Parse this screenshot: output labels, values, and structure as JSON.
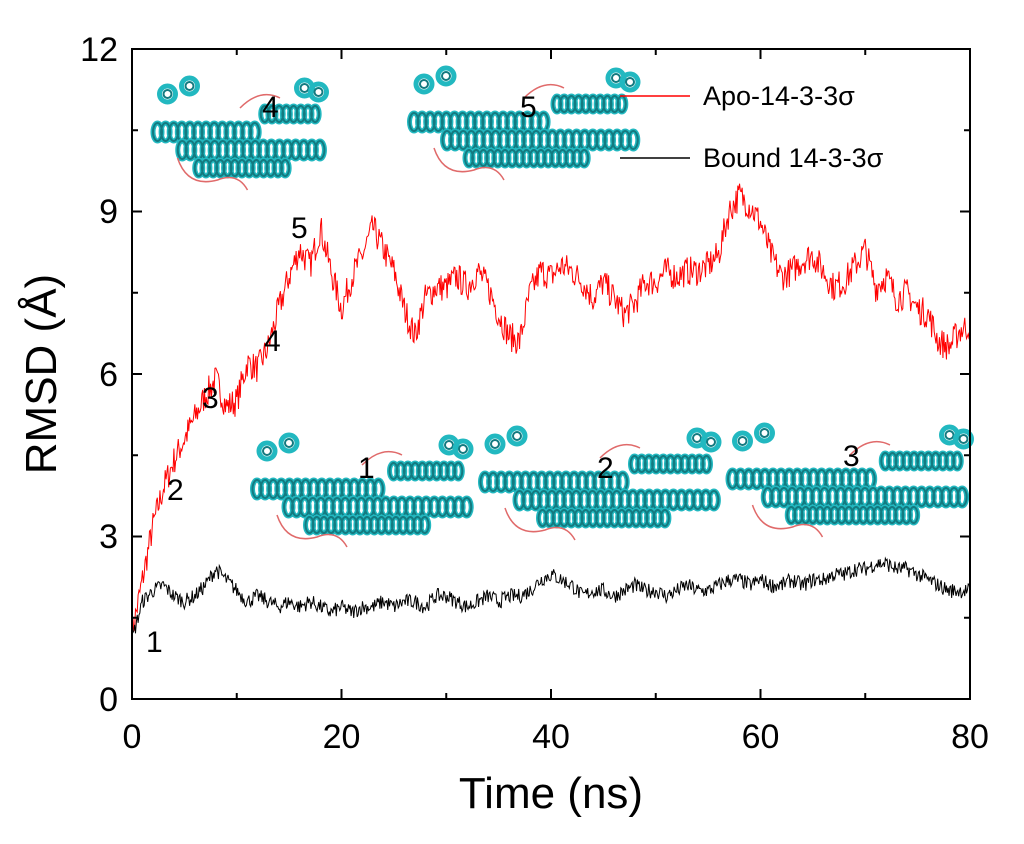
{
  "chart_data": {
    "type": "line",
    "title": "",
    "xlabel": "Time (ns)",
    "ylabel": "RMSD (Å)",
    "xlim": [
      0,
      80
    ],
    "ylim": [
      0,
      12
    ],
    "xticks": [
      0,
      20,
      40,
      60,
      80
    ],
    "yticks": [
      0,
      3,
      6,
      9,
      12
    ],
    "xtick_labels": [
      "0",
      "20",
      "40",
      "60",
      "80"
    ],
    "ytick_labels": [
      "0",
      "3",
      "6",
      "9",
      "12"
    ],
    "legend_position": "top-right",
    "series": [
      {
        "name": "Apo-14-3-3σ",
        "color": "#ff0000",
        "x": [
          0,
          1,
          2,
          3,
          4,
          5,
          6,
          7,
          8,
          9,
          10,
          11,
          12,
          13,
          14,
          15,
          16,
          17,
          18,
          19,
          20,
          21,
          22,
          23,
          24,
          25,
          26,
          27,
          28,
          29,
          30,
          31,
          32,
          33,
          34,
          35,
          36,
          37,
          38,
          39,
          40,
          41,
          42,
          43,
          44,
          45,
          46,
          47,
          48,
          49,
          50,
          51,
          52,
          53,
          54,
          55,
          56,
          57,
          58,
          59,
          60,
          61,
          62,
          63,
          64,
          65,
          66,
          67,
          68,
          69,
          70,
          71,
          72,
          73,
          74,
          75,
          76,
          77,
          78,
          79,
          80
        ],
        "y": [
          1.2,
          2.2,
          3.2,
          3.9,
          4.4,
          4.8,
          5.2,
          5.6,
          5.9,
          5.4,
          5.5,
          6.2,
          6.1,
          6.5,
          7.2,
          7.8,
          8.3,
          8.0,
          8.7,
          7.9,
          7.2,
          7.8,
          8.2,
          8.7,
          8.3,
          7.9,
          7.2,
          6.7,
          7.4,
          7.6,
          7.6,
          7.8,
          7.6,
          7.9,
          7.6,
          7.1,
          6.7,
          6.6,
          7.5,
          7.9,
          7.8,
          8.0,
          7.9,
          7.7,
          7.4,
          7.7,
          7.4,
          7.1,
          7.3,
          7.7,
          7.7,
          7.9,
          7.8,
          7.9,
          7.9,
          8.0,
          8.2,
          9.0,
          9.3,
          9.1,
          8.8,
          8.2,
          7.8,
          7.9,
          8.1,
          8.2,
          7.9,
          7.6,
          7.7,
          8.0,
          8.3,
          7.6,
          7.8,
          7.4,
          7.5,
          7.2,
          7.1,
          6.6,
          6.5,
          6.8,
          6.9
        ]
      },
      {
        "name": "Bound 14-3-3σ",
        "color": "#000000",
        "x": [
          0,
          1,
          2,
          3,
          4,
          5,
          6,
          7,
          8,
          9,
          10,
          11,
          12,
          13,
          14,
          15,
          16,
          17,
          18,
          19,
          20,
          21,
          22,
          23,
          24,
          25,
          26,
          27,
          28,
          29,
          30,
          31,
          32,
          33,
          34,
          35,
          36,
          37,
          38,
          39,
          40,
          41,
          42,
          43,
          44,
          45,
          46,
          47,
          48,
          49,
          50,
          51,
          52,
          53,
          54,
          55,
          56,
          57,
          58,
          59,
          60,
          61,
          62,
          63,
          64,
          65,
          66,
          67,
          68,
          69,
          70,
          71,
          72,
          73,
          74,
          75,
          76,
          77,
          78,
          79,
          80
        ],
        "y": [
          1.1,
          1.8,
          2.0,
          2.1,
          1.9,
          1.8,
          1.9,
          2.1,
          2.4,
          2.2,
          2.0,
          1.8,
          1.9,
          1.8,
          1.7,
          1.8,
          1.7,
          1.8,
          1.7,
          1.6,
          1.7,
          1.6,
          1.7,
          1.7,
          1.8,
          1.7,
          1.8,
          1.8,
          1.7,
          1.9,
          1.9,
          1.8,
          1.7,
          1.8,
          1.9,
          1.8,
          1.9,
          1.9,
          2.0,
          2.2,
          2.3,
          2.2,
          2.1,
          1.9,
          2.0,
          2.0,
          1.9,
          2.0,
          2.1,
          2.0,
          2.0,
          1.9,
          2.0,
          2.1,
          2.0,
          2.0,
          2.1,
          2.2,
          2.2,
          2.1,
          2.2,
          2.1,
          2.1,
          2.2,
          2.1,
          2.2,
          2.2,
          2.3,
          2.3,
          2.4,
          2.4,
          2.5,
          2.5,
          2.4,
          2.4,
          2.3,
          2.2,
          2.1,
          2.0,
          2.0,
          2.0
        ]
      }
    ],
    "annotations": [
      {
        "text": "1",
        "series": "Bound 14-3-3σ",
        "x": 1.2,
        "y": 0.45
      },
      {
        "text": "2",
        "series": "Apo-14-3-3σ",
        "x": 2.2,
        "y": 3.8
      },
      {
        "text": "3",
        "series": "Apo-14-3-3σ",
        "x": 4.5,
        "y": 5.4
      },
      {
        "text": "4",
        "series": "Apo-14-3-3σ",
        "x": 8.5,
        "y": 6.6
      },
      {
        "text": "5",
        "series": "Apo-14-3-3σ",
        "x": 11.2,
        "y": 8.7
      }
    ],
    "inset_labels": [
      "4",
      "5",
      "1",
      "2",
      "3"
    ]
  }
}
